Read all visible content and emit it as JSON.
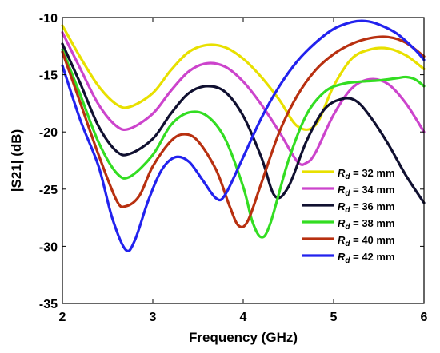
{
  "chart_data": {
    "type": "line",
    "title": "",
    "xlabel": "Frequency (GHz)",
    "ylabel": "|S21| (dB)",
    "xlim": [
      2,
      6
    ],
    "ylim": [
      -35,
      -10
    ],
    "xticks": [
      2,
      3,
      4,
      5,
      6
    ],
    "yticks": [
      -35,
      -30,
      -25,
      -20,
      -15,
      -10
    ],
    "grid": false,
    "legend_position": "bottom-right",
    "series": [
      {
        "name_prefix": "R",
        "name_sub": "d",
        "name_suffix": " = 32 mm",
        "color": "#e8e000",
        "points": [
          [
            2.0,
            -10.7
          ],
          [
            2.2,
            -13.5
          ],
          [
            2.4,
            -16.0
          ],
          [
            2.6,
            -17.6
          ],
          [
            2.75,
            -17.8
          ],
          [
            3.0,
            -16.6
          ],
          [
            3.2,
            -14.6
          ],
          [
            3.4,
            -13.0
          ],
          [
            3.6,
            -12.4
          ],
          [
            3.8,
            -12.6
          ],
          [
            4.0,
            -13.6
          ],
          [
            4.2,
            -15.2
          ],
          [
            4.4,
            -17.2
          ],
          [
            4.6,
            -19.5
          ],
          [
            4.8,
            -19.4
          ],
          [
            5.0,
            -16.0
          ],
          [
            5.2,
            -13.6
          ],
          [
            5.4,
            -12.8
          ],
          [
            5.6,
            -12.7
          ],
          [
            5.8,
            -13.3
          ],
          [
            6.0,
            -14.5
          ]
        ]
      },
      {
        "name_prefix": "R",
        "name_sub": "d",
        "name_suffix": " = 34 mm",
        "color": "#cc44cc",
        "points": [
          [
            2.0,
            -11.3
          ],
          [
            2.2,
            -14.5
          ],
          [
            2.4,
            -17.6
          ],
          [
            2.6,
            -19.5
          ],
          [
            2.75,
            -19.7
          ],
          [
            3.0,
            -18.4
          ],
          [
            3.2,
            -16.4
          ],
          [
            3.4,
            -14.7
          ],
          [
            3.6,
            -14.0
          ],
          [
            3.8,
            -14.3
          ],
          [
            4.0,
            -15.6
          ],
          [
            4.2,
            -17.6
          ],
          [
            4.4,
            -20.0
          ],
          [
            4.6,
            -22.6
          ],
          [
            4.7,
            -22.7
          ],
          [
            4.8,
            -21.8
          ],
          [
            5.0,
            -18.5
          ],
          [
            5.2,
            -16.2
          ],
          [
            5.4,
            -15.4
          ],
          [
            5.6,
            -15.8
          ],
          [
            5.8,
            -17.5
          ],
          [
            6.0,
            -20.0
          ]
        ]
      },
      {
        "name_prefix": "R",
        "name_sub": "d",
        "name_suffix": " = 36 mm",
        "color": "#101030",
        "points": [
          [
            2.0,
            -12.3
          ],
          [
            2.2,
            -15.8
          ],
          [
            2.4,
            -19.5
          ],
          [
            2.6,
            -21.7
          ],
          [
            2.75,
            -21.9
          ],
          [
            3.0,
            -20.6
          ],
          [
            3.2,
            -18.4
          ],
          [
            3.4,
            -16.6
          ],
          [
            3.6,
            -16.0
          ],
          [
            3.8,
            -16.5
          ],
          [
            4.0,
            -18.6
          ],
          [
            4.2,
            -22.2
          ],
          [
            4.35,
            -25.6
          ],
          [
            4.5,
            -24.8
          ],
          [
            4.7,
            -20.8
          ],
          [
            4.9,
            -18.0
          ],
          [
            5.1,
            -17.1
          ],
          [
            5.25,
            -17.3
          ],
          [
            5.4,
            -18.6
          ],
          [
            5.6,
            -21.0
          ],
          [
            5.8,
            -23.8
          ],
          [
            6.0,
            -26.2
          ]
        ]
      },
      {
        "name_prefix": "R",
        "name_sub": "d",
        "name_suffix": " = 38 mm",
        "color": "#33dd22",
        "points": [
          [
            2.0,
            -12.8
          ],
          [
            2.2,
            -16.8
          ],
          [
            2.4,
            -20.9
          ],
          [
            2.6,
            -23.6
          ],
          [
            2.75,
            -23.9
          ],
          [
            3.0,
            -22.0
          ],
          [
            3.2,
            -19.4
          ],
          [
            3.4,
            -18.3
          ],
          [
            3.6,
            -18.6
          ],
          [
            3.8,
            -20.6
          ],
          [
            4.0,
            -24.8
          ],
          [
            4.1,
            -27.8
          ],
          [
            4.2,
            -29.2
          ],
          [
            4.3,
            -28.0
          ],
          [
            4.5,
            -22.5
          ],
          [
            4.7,
            -18.5
          ],
          [
            4.9,
            -16.5
          ],
          [
            5.1,
            -15.8
          ],
          [
            5.3,
            -15.6
          ],
          [
            5.5,
            -15.5
          ],
          [
            5.7,
            -15.3
          ],
          [
            5.8,
            -15.2
          ],
          [
            5.9,
            -15.4
          ],
          [
            6.0,
            -16.0
          ]
        ]
      },
      {
        "name_prefix": "R",
        "name_sub": "d",
        "name_suffix": " = 40 mm",
        "color": "#b83010",
        "points": [
          [
            2.0,
            -13.0
          ],
          [
            2.2,
            -17.5
          ],
          [
            2.4,
            -22.0
          ],
          [
            2.6,
            -26.0
          ],
          [
            2.7,
            -26.5
          ],
          [
            2.85,
            -25.6
          ],
          [
            3.0,
            -23.0
          ],
          [
            3.2,
            -20.8
          ],
          [
            3.35,
            -20.2
          ],
          [
            3.5,
            -20.8
          ],
          [
            3.7,
            -23.3
          ],
          [
            3.85,
            -26.5
          ],
          [
            3.95,
            -28.2
          ],
          [
            4.05,
            -27.8
          ],
          [
            4.2,
            -24.5
          ],
          [
            4.4,
            -20.0
          ],
          [
            4.6,
            -16.8
          ],
          [
            4.8,
            -14.6
          ],
          [
            5.0,
            -13.2
          ],
          [
            5.2,
            -12.3
          ],
          [
            5.4,
            -11.8
          ],
          [
            5.6,
            -11.7
          ],
          [
            5.8,
            -12.2
          ],
          [
            6.0,
            -13.4
          ]
        ]
      },
      {
        "name_prefix": "R",
        "name_sub": "d",
        "name_suffix": " = 42 mm",
        "color": "#2222ee",
        "points": [
          [
            2.0,
            -14.2
          ],
          [
            2.2,
            -19.0
          ],
          [
            2.4,
            -23.0
          ],
          [
            2.55,
            -27.5
          ],
          [
            2.7,
            -30.3
          ],
          [
            2.8,
            -29.5
          ],
          [
            2.95,
            -26.0
          ],
          [
            3.1,
            -23.3
          ],
          [
            3.25,
            -22.2
          ],
          [
            3.4,
            -22.6
          ],
          [
            3.55,
            -24.2
          ],
          [
            3.7,
            -25.8
          ],
          [
            3.8,
            -25.5
          ],
          [
            4.0,
            -22.2
          ],
          [
            4.2,
            -18.8
          ],
          [
            4.4,
            -16.0
          ],
          [
            4.6,
            -13.8
          ],
          [
            4.8,
            -12.2
          ],
          [
            5.0,
            -11.0
          ],
          [
            5.2,
            -10.4
          ],
          [
            5.35,
            -10.3
          ],
          [
            5.5,
            -10.6
          ],
          [
            5.7,
            -11.4
          ],
          [
            5.9,
            -12.8
          ],
          [
            6.0,
            -13.7
          ]
        ]
      }
    ]
  }
}
